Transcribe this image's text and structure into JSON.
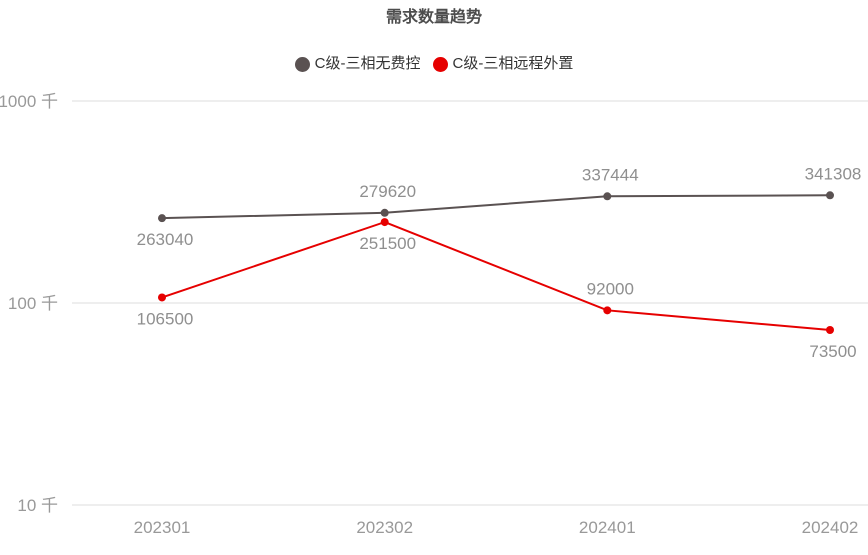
{
  "chart_data": {
    "type": "line",
    "title": "需求数量趋势",
    "categories": [
      "202301",
      "202302",
      "202401",
      "202402"
    ],
    "series": [
      {
        "name": "C级-三相无费控",
        "color": "#5a5252",
        "values": [
          263040,
          279620,
          337444,
          341308
        ]
      },
      {
        "name": "C级-三相远程外置",
        "color": "#e60000",
        "values": [
          106500,
          251500,
          92000,
          73500
        ]
      }
    ],
    "y_axis": {
      "scale": "log",
      "unit": "千",
      "ticks": [
        {
          "value": 1000000,
          "label": "1000 千"
        },
        {
          "value": 100000,
          "label": "100 千"
        },
        {
          "value": 10000,
          "label": "10 千"
        }
      ]
    },
    "legend_position": "top",
    "grid": "horizontal-only",
    "data_labels_visible": true
  },
  "colors": {
    "gridline": "#eeeeee",
    "axis_label": "#999999",
    "value_label": "#8f8f8f",
    "title": "#4d4d4d",
    "legend_text": "#333333"
  }
}
